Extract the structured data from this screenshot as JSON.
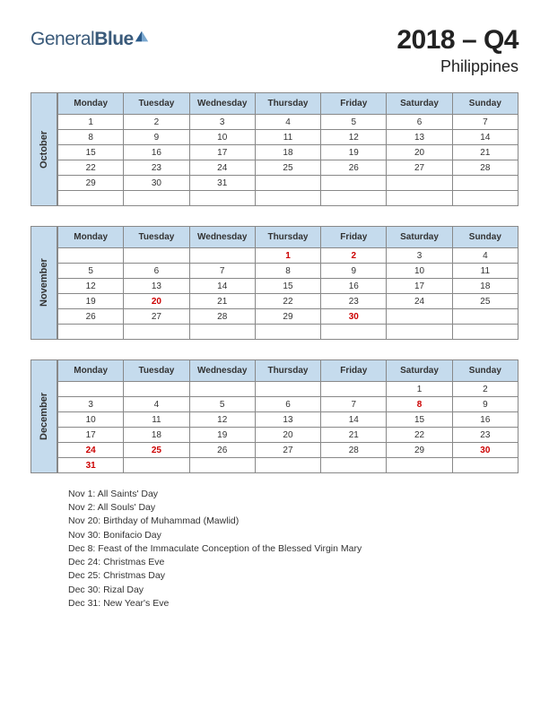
{
  "logo": {
    "word1": "General",
    "word2": "Blue"
  },
  "title": {
    "main": "2018 – Q4",
    "sub": "Philippines"
  },
  "days": [
    "Monday",
    "Tuesday",
    "Wednesday",
    "Thursday",
    "Friday",
    "Saturday",
    "Sunday"
  ],
  "colors": {
    "header_bg": "#c5dbed",
    "border": "#888888",
    "holiday_text": "#cc0000",
    "logo_text": "#3a5a7a",
    "background": "#ffffff"
  },
  "months": [
    {
      "name": "October",
      "weeks": [
        [
          {
            "d": "1"
          },
          {
            "d": "2"
          },
          {
            "d": "3"
          },
          {
            "d": "4"
          },
          {
            "d": "5"
          },
          {
            "d": "6"
          },
          {
            "d": "7"
          }
        ],
        [
          {
            "d": "8"
          },
          {
            "d": "9"
          },
          {
            "d": "10"
          },
          {
            "d": "11"
          },
          {
            "d": "12"
          },
          {
            "d": "13"
          },
          {
            "d": "14"
          }
        ],
        [
          {
            "d": "15"
          },
          {
            "d": "16"
          },
          {
            "d": "17"
          },
          {
            "d": "18"
          },
          {
            "d": "19"
          },
          {
            "d": "20"
          },
          {
            "d": "21"
          }
        ],
        [
          {
            "d": "22"
          },
          {
            "d": "23"
          },
          {
            "d": "24"
          },
          {
            "d": "25"
          },
          {
            "d": "26"
          },
          {
            "d": "27"
          },
          {
            "d": "28"
          }
        ],
        [
          {
            "d": "29"
          },
          {
            "d": "30"
          },
          {
            "d": "31"
          },
          {
            "d": ""
          },
          {
            "d": ""
          },
          {
            "d": ""
          },
          {
            "d": ""
          }
        ],
        [
          {
            "d": ""
          },
          {
            "d": ""
          },
          {
            "d": ""
          },
          {
            "d": ""
          },
          {
            "d": ""
          },
          {
            "d": ""
          },
          {
            "d": ""
          }
        ]
      ]
    },
    {
      "name": "November",
      "weeks": [
        [
          {
            "d": ""
          },
          {
            "d": ""
          },
          {
            "d": ""
          },
          {
            "d": "1",
            "h": true
          },
          {
            "d": "2",
            "h": true
          },
          {
            "d": "3"
          },
          {
            "d": "4"
          }
        ],
        [
          {
            "d": "5"
          },
          {
            "d": "6"
          },
          {
            "d": "7"
          },
          {
            "d": "8"
          },
          {
            "d": "9"
          },
          {
            "d": "10"
          },
          {
            "d": "11"
          }
        ],
        [
          {
            "d": "12"
          },
          {
            "d": "13"
          },
          {
            "d": "14"
          },
          {
            "d": "15"
          },
          {
            "d": "16"
          },
          {
            "d": "17"
          },
          {
            "d": "18"
          }
        ],
        [
          {
            "d": "19"
          },
          {
            "d": "20",
            "h": true
          },
          {
            "d": "21"
          },
          {
            "d": "22"
          },
          {
            "d": "23"
          },
          {
            "d": "24"
          },
          {
            "d": "25"
          }
        ],
        [
          {
            "d": "26"
          },
          {
            "d": "27"
          },
          {
            "d": "28"
          },
          {
            "d": "29"
          },
          {
            "d": "30",
            "h": true
          },
          {
            "d": ""
          },
          {
            "d": ""
          }
        ],
        [
          {
            "d": ""
          },
          {
            "d": ""
          },
          {
            "d": ""
          },
          {
            "d": ""
          },
          {
            "d": ""
          },
          {
            "d": ""
          },
          {
            "d": ""
          }
        ]
      ]
    },
    {
      "name": "December",
      "weeks": [
        [
          {
            "d": ""
          },
          {
            "d": ""
          },
          {
            "d": ""
          },
          {
            "d": ""
          },
          {
            "d": ""
          },
          {
            "d": "1"
          },
          {
            "d": "2"
          }
        ],
        [
          {
            "d": "3"
          },
          {
            "d": "4"
          },
          {
            "d": "5"
          },
          {
            "d": "6"
          },
          {
            "d": "7"
          },
          {
            "d": "8",
            "h": true
          },
          {
            "d": "9"
          }
        ],
        [
          {
            "d": "10"
          },
          {
            "d": "11"
          },
          {
            "d": "12"
          },
          {
            "d": "13"
          },
          {
            "d": "14"
          },
          {
            "d": "15"
          },
          {
            "d": "16"
          }
        ],
        [
          {
            "d": "17"
          },
          {
            "d": "18"
          },
          {
            "d": "19"
          },
          {
            "d": "20"
          },
          {
            "d": "21"
          },
          {
            "d": "22"
          },
          {
            "d": "23"
          }
        ],
        [
          {
            "d": "24",
            "h": true
          },
          {
            "d": "25",
            "h": true
          },
          {
            "d": "26"
          },
          {
            "d": "27"
          },
          {
            "d": "28"
          },
          {
            "d": "29"
          },
          {
            "d": "30",
            "h": true
          }
        ],
        [
          {
            "d": "31",
            "h": true
          },
          {
            "d": ""
          },
          {
            "d": ""
          },
          {
            "d": ""
          },
          {
            "d": ""
          },
          {
            "d": ""
          },
          {
            "d": ""
          }
        ]
      ]
    }
  ],
  "holidays": [
    "Nov 1: All Saints' Day",
    "Nov 2: All Souls' Day",
    "Nov 20: Birthday of Muhammad (Mawlid)",
    "Nov 30: Bonifacio Day",
    "Dec 8: Feast of the Immaculate Conception of the Blessed Virgin Mary",
    "Dec 24: Christmas Eve",
    "Dec 25: Christmas Day",
    "Dec 30: Rizal Day",
    "Dec 31: New Year's Eve"
  ]
}
